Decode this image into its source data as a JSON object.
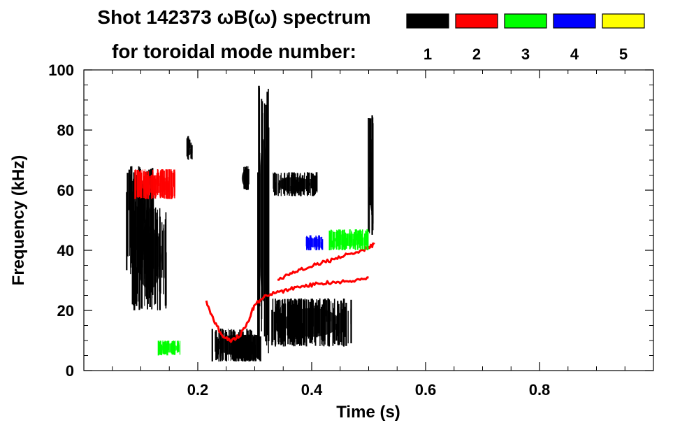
{
  "title_line1": "Shot 142373 ωB(ω) spectrum",
  "title_line2": "for toroidal mode number:",
  "legend": [
    {
      "label": "1",
      "color": "#000000"
    },
    {
      "label": "2",
      "color": "#ff0000"
    },
    {
      "label": "3",
      "color": "#00ff00"
    },
    {
      "label": "4",
      "color": "#0000ff"
    },
    {
      "label": "5",
      "color": "#ffff00"
    }
  ],
  "chart_data": {
    "type": "heatmap",
    "title": "Shot 142373 ωB(ω) spectrum",
    "xlabel": "Time (s)",
    "ylabel": "Frequency (kHz)",
    "xlim": [
      0.0,
      1.0
    ],
    "ylim": [
      0,
      100
    ],
    "xticks": [
      0.2,
      0.4,
      0.6,
      0.8
    ],
    "xtick_labels": [
      "0.2",
      "0.4",
      "0.6",
      "0.8"
    ],
    "yticks": [
      0,
      20,
      40,
      60,
      80,
      100
    ],
    "ytick_labels": [
      "0",
      "20",
      "40",
      "60",
      "80",
      "100"
    ],
    "legend_title": "for toroidal mode number:",
    "legend_placement": "top",
    "grid": false,
    "series": [
      {
        "name": "1",
        "color": "#000000",
        "regions": [
          {
            "t": [
              0.075,
              0.125
            ],
            "f": [
              32,
              68
            ]
          },
          {
            "t": [
              0.085,
              0.145
            ],
            "f": [
              20,
              55
            ]
          },
          {
            "t": [
              0.225,
              0.3
            ],
            "f": [
              3,
              14
            ]
          },
          {
            "t": [
              0.26,
              0.31
            ],
            "f": [
              3,
              12
            ]
          },
          {
            "t": [
              0.305,
              0.325
            ],
            "f": [
              5,
              95
            ]
          },
          {
            "t": [
              0.33,
              0.47
            ],
            "f": [
              8,
              24
            ]
          },
          {
            "t": [
              0.275,
              0.29
            ],
            "f": [
              60,
              68
            ]
          },
          {
            "t": [
              0.33,
              0.41
            ],
            "f": [
              58,
              66
            ]
          },
          {
            "t": [
              0.18,
              0.19
            ],
            "f": [
              70,
              78
            ]
          },
          {
            "t": [
              0.5,
              0.51
            ],
            "f": [
              45,
              85
            ]
          }
        ],
        "tracks": []
      },
      {
        "name": "2",
        "color": "#ff0000",
        "regions": [
          {
            "t": [
              0.09,
              0.16
            ],
            "f": [
              57,
              67
            ]
          }
        ],
        "tracks": [
          {
            "t": [
              0.215,
              0.23,
              0.245,
              0.26,
              0.275,
              0.29,
              0.3,
              0.32,
              0.34,
              0.36,
              0.38,
              0.4,
              0.42,
              0.44,
              0.46,
              0.48,
              0.5
            ],
            "f": [
              23,
              16,
              11,
              10,
              12,
              17,
              22,
              25,
              26,
              27,
              28,
              28.5,
              29,
              29.5,
              29.5,
              30,
              31
            ]
          },
          {
            "t": [
              0.34,
              0.36,
              0.38,
              0.4,
              0.42,
              0.44,
              0.46,
              0.48,
              0.5,
              0.51
            ],
            "f": [
              30,
              32,
              33.5,
              35,
              36,
              37,
              38.5,
              39.5,
              41,
              42
            ]
          }
        ]
      },
      {
        "name": "3",
        "color": "#00ff00",
        "regions": [
          {
            "t": [
              0.43,
              0.5
            ],
            "f": [
              40,
              47
            ]
          },
          {
            "t": [
              0.13,
              0.17
            ],
            "f": [
              5,
              10
            ]
          }
        ],
        "tracks": []
      },
      {
        "name": "4",
        "color": "#0000ff",
        "regions": [
          {
            "t": [
              0.39,
              0.42
            ],
            "f": [
              40,
              45
            ]
          }
        ],
        "tracks": []
      },
      {
        "name": "5",
        "color": "#ffff00",
        "regions": [],
        "tracks": []
      }
    ]
  }
}
